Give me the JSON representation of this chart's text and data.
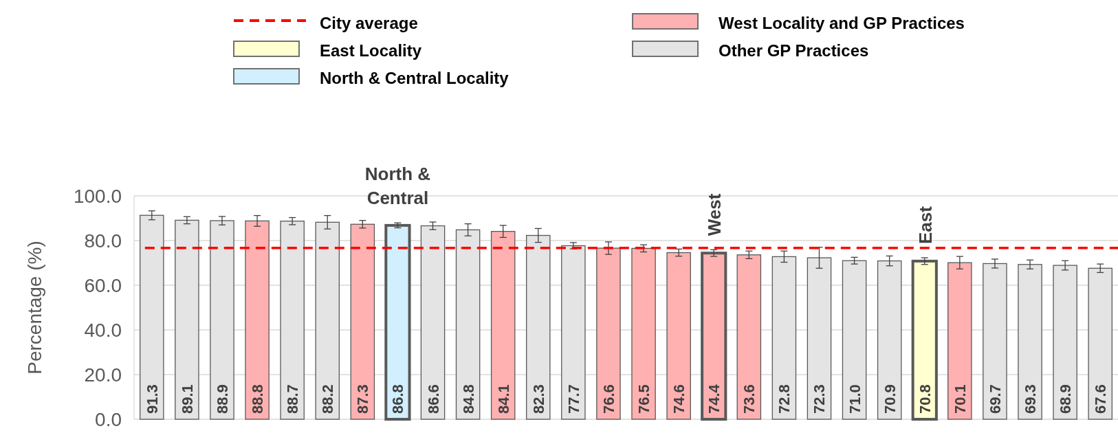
{
  "chart_data": {
    "type": "bar",
    "stacked": true,
    "ylabel": "Percentage (%)",
    "categories": [
      null,
      null,
      null,
      null,
      null,
      null,
      null,
      null,
      null,
      null,
      null,
      null,
      null,
      null,
      null,
      null,
      null,
      null,
      null,
      null,
      null,
      null,
      null,
      null,
      null,
      null,
      null,
      null
    ],
    "series": [
      {
        "name": "East Locality",
        "color": "#ffffd0",
        "values": [
          null,
          null,
          null,
          null,
          null,
          null,
          null,
          null,
          null,
          null,
          null,
          null,
          null,
          null,
          null,
          null,
          null,
          null,
          null,
          null,
          null,
          null,
          70.8,
          null,
          null,
          null,
          null,
          null
        ],
        "errors": [
          null,
          null,
          null,
          null,
          null,
          null,
          null,
          null,
          null,
          null,
          null,
          null,
          null,
          null,
          null,
          null,
          null,
          null,
          null,
          null,
          null,
          null,
          1.5,
          null,
          null,
          null,
          null,
          null
        ]
      },
      {
        "name": "North & Central Locality",
        "color": "#d1efff",
        "values": [
          null,
          null,
          null,
          null,
          null,
          null,
          null,
          86.8,
          null,
          null,
          null,
          null,
          null,
          null,
          null,
          null,
          null,
          null,
          null,
          null,
          null,
          null,
          null,
          null,
          null,
          null,
          null,
          null
        ],
        "errors": [
          null,
          null,
          null,
          null,
          null,
          null,
          null,
          1.1,
          null,
          null,
          null,
          null,
          null,
          null,
          null,
          null,
          null,
          null,
          null,
          null,
          null,
          null,
          null,
          null,
          null,
          null,
          null,
          null
        ]
      },
      {
        "name": "West Locality and GP Practices",
        "color": "#ffb1b1",
        "values": [
          null,
          null,
          null,
          88.8,
          null,
          null,
          87.3,
          null,
          null,
          null,
          84.1,
          null,
          null,
          76.6,
          76.5,
          74.6,
          74.4,
          73.6,
          null,
          null,
          null,
          null,
          null,
          70.1,
          null,
          null,
          null,
          null
        ],
        "errors": [
          null,
          null,
          null,
          2.4,
          null,
          null,
          1.7,
          null,
          null,
          null,
          2.7,
          null,
          null,
          2.8,
          1.6,
          1.6,
          1.5,
          1.7,
          null,
          null,
          null,
          null,
          null,
          2.8,
          null,
          null,
          null,
          null
        ]
      },
      {
        "name": "Other GP Practices",
        "color": "#e4e4e4",
        "values": [
          91.3,
          89.1,
          88.9,
          null,
          88.7,
          88.2,
          null,
          null,
          86.6,
          84.8,
          null,
          82.3,
          77.7,
          null,
          null,
          null,
          null,
          null,
          72.8,
          72.3,
          71.0,
          70.9,
          null,
          null,
          69.7,
          69.3,
          68.9,
          67.6
        ],
        "value_labels": [
          "91.3",
          "89.1",
          "88.9",
          null,
          "88.7",
          "88.2",
          null,
          null,
          "86.6",
          "84.8",
          null,
          "82.3",
          "77.7",
          null,
          null,
          null,
          null,
          null,
          "72.8",
          "72.3",
          "71.0",
          "70.9",
          null,
          null,
          "69.7",
          "69.3",
          "68.9",
          "67.6"
        ],
        "errors": [
          2.0,
          1.6,
          1.9,
          null,
          1.6,
          3.0,
          null,
          null,
          1.7,
          2.7,
          null,
          3.1,
          1.4,
          null,
          null,
          null,
          null,
          null,
          2.5,
          4.7,
          1.5,
          2.2,
          null,
          null,
          2.0,
          2.0,
          2.1,
          1.9
        ]
      }
    ],
    "ylim": [
      0,
      100
    ],
    "yticks": [
      {
        "value": 0,
        "label": "0.0"
      },
      {
        "value": 20,
        "label": "20.0"
      },
      {
        "value": 40,
        "label": "40.0"
      },
      {
        "value": 60,
        "label": "60.0"
      },
      {
        "value": 80,
        "label": "80.0"
      },
      {
        "value": 100,
        "label": "100.0"
      }
    ],
    "ref_lines": [
      {
        "axis": "y",
        "value": 76.7,
        "label": "City average",
        "color": "#ff0000",
        "line_style": "dashed"
      }
    ],
    "annotations": [
      "North & Central",
      "West",
      "East"
    ],
    "data_labels": true,
    "grid": "y",
    "legend": "top"
  }
}
